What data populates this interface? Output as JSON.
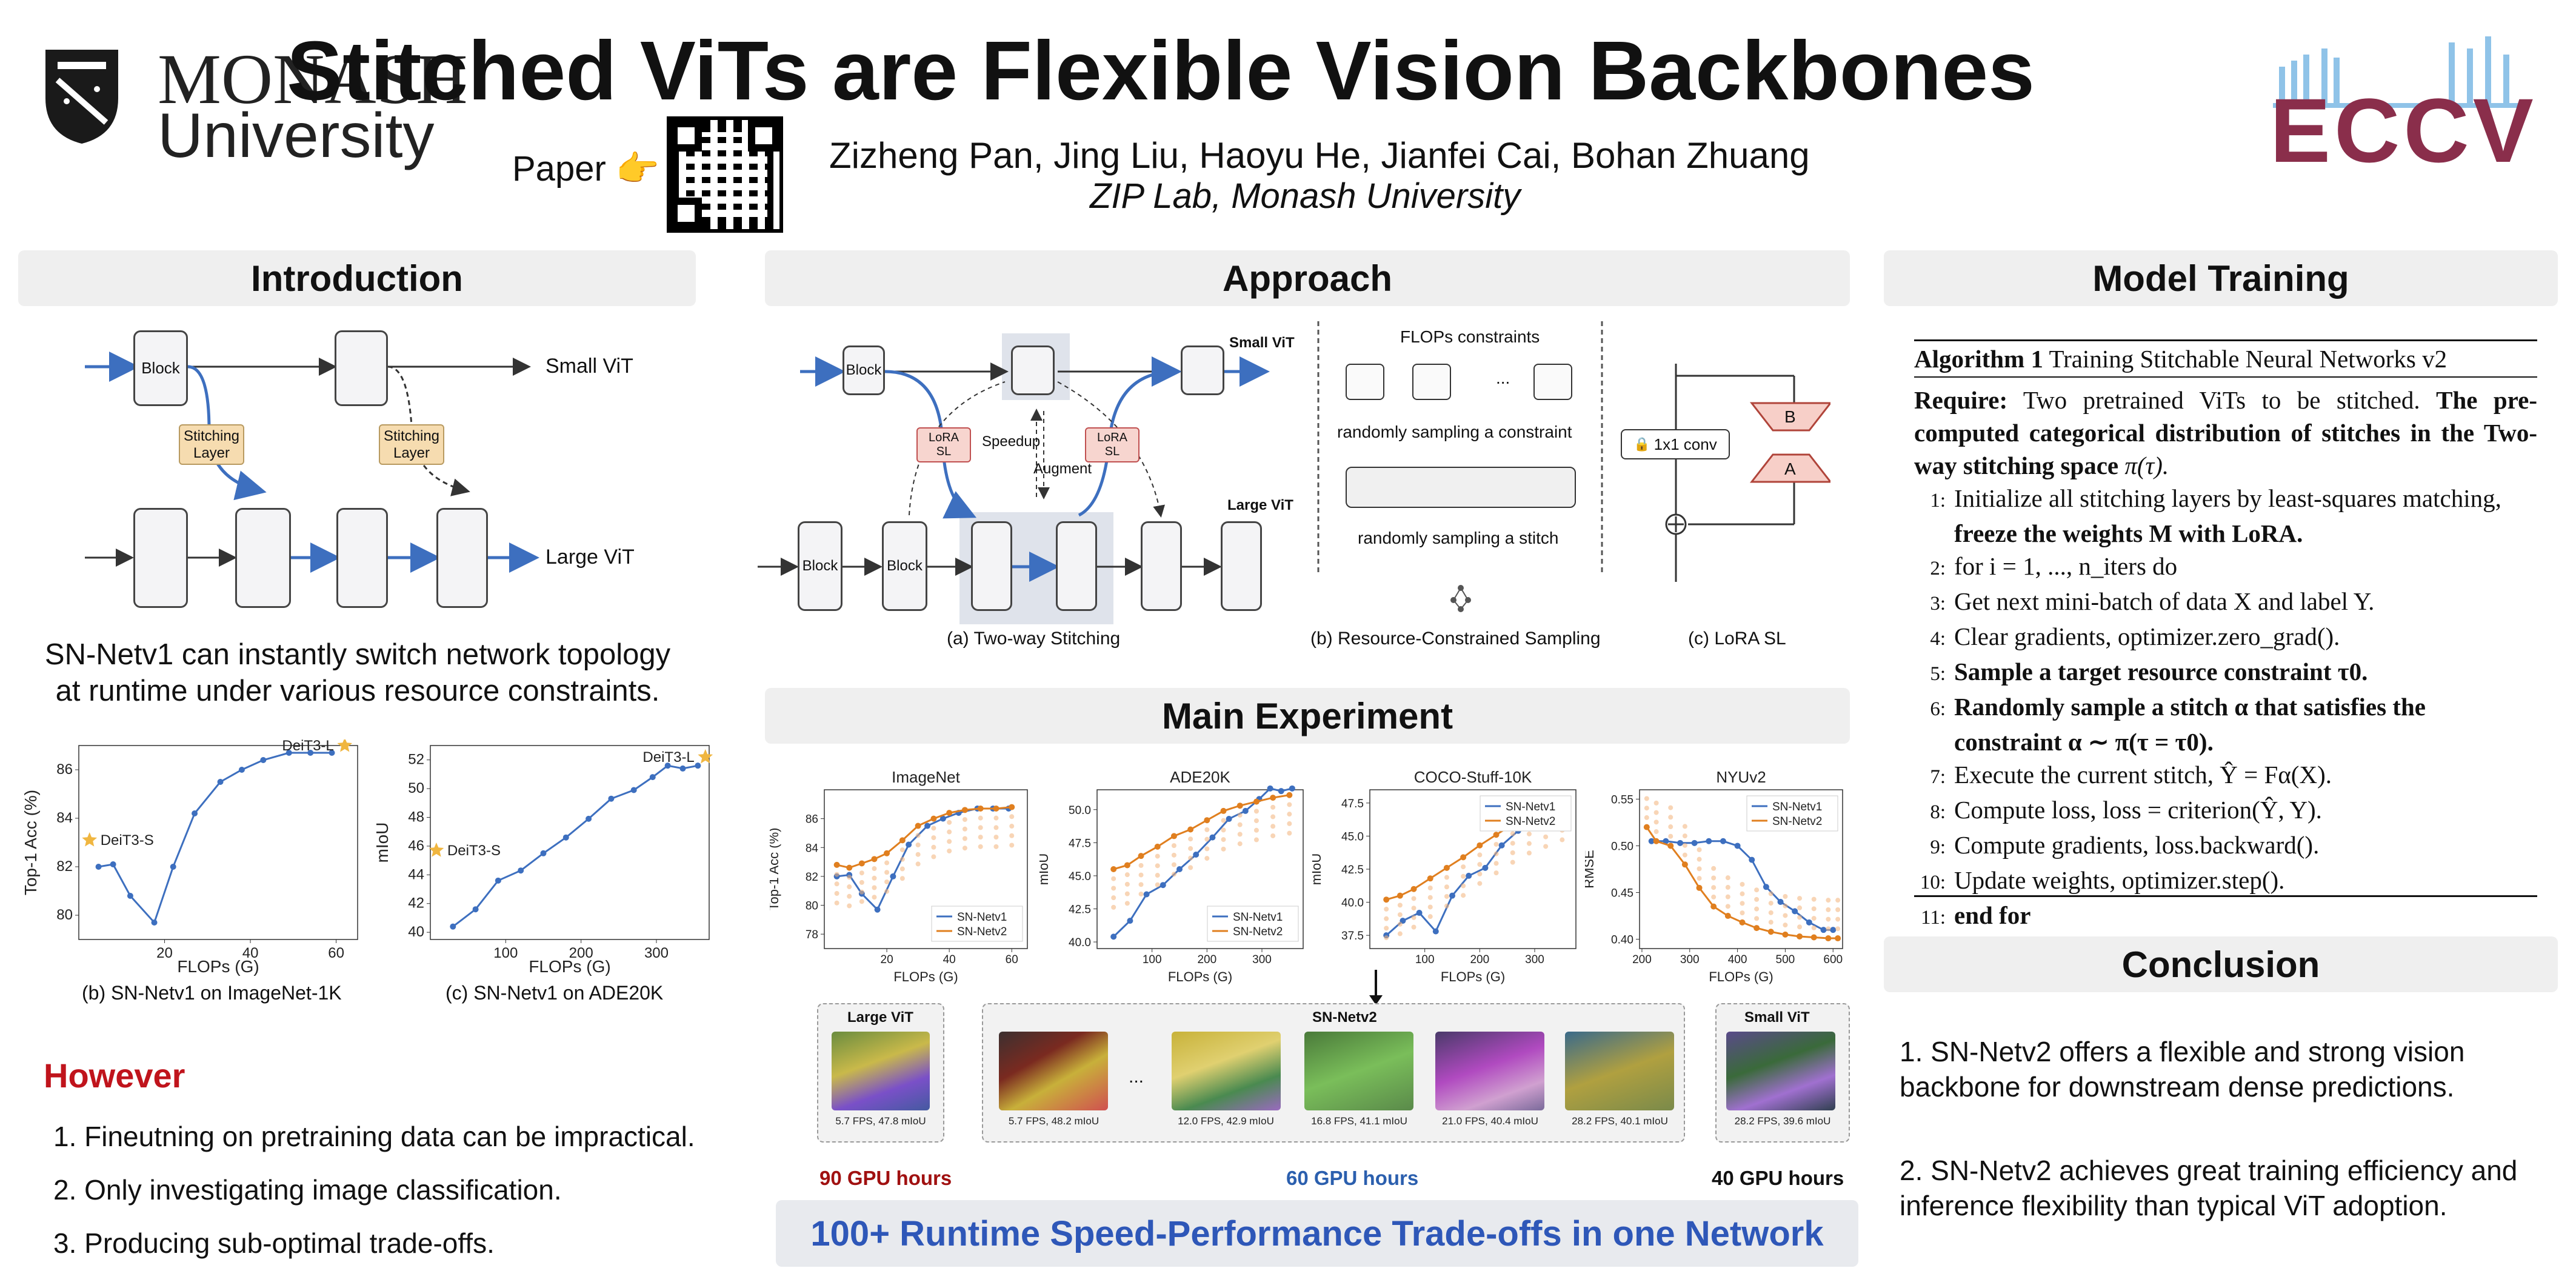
{
  "header": {
    "university_name": "MONASH",
    "university_sub": "University",
    "title": "Stitched ViTs are Flexible Vision Backbones",
    "paper_label": "Paper 👉",
    "authors": "Zizheng Pan, Jing Liu, Haoyu He, Jianfei Cai, Bohan Zhuang",
    "affiliation": "ZIP Lab, Monash University",
    "conference_logo": "ECCV"
  },
  "introduction": {
    "heading": "Introduction",
    "diagram": {
      "block": "Block",
      "stitching_layer": "Stitching Layer",
      "small_vit": "Small ViT",
      "large_vit": "Large ViT"
    },
    "summary": "SN-Netv1 can instantly switch network topology at runtime under various resource constraints.",
    "chart_b_caption": "(b) SN-Netv1 on ImageNet-1K",
    "chart_c_caption": "(c) SN-Netv1 on ADE20K",
    "however_heading": "However",
    "points": [
      "1. Fineutning on pretraining data can be impractical.",
      "2. Only investigating image classification.",
      "3. Producing sub-optimal trade-offs."
    ]
  },
  "approach": {
    "heading": "Approach",
    "block": "Block",
    "small_vit": "Small ViT",
    "large_vit": "Large ViT",
    "lora_sl": "LoRA SL",
    "speedup": "Speedup",
    "augment": "Augment",
    "flops_constraints": "FLOPs constraints",
    "ellipsis": "...",
    "sampling_constraint": "randomly sampling a constraint",
    "sampling_stitch": "randomly sampling a stitch",
    "conv_label": "1x1 conv",
    "b_label": "B",
    "a_label": "A",
    "caption_a": "(a) Two-way Stitching",
    "caption_b": "(b) Resource-Constrained Sampling",
    "caption_c": "(c) LoRA SL"
  },
  "main_experiment": {
    "heading": "Main Experiment",
    "large_vit_label": "Large ViT",
    "sn_netv2_label": "SN-Netv2",
    "small_vit_label": "Small ViT",
    "ellipsis": "...",
    "img_captions": [
      "5.7 FPS, 47.8 mIoU",
      "5.7 FPS, 48.2 mIoU",
      "12.0 FPS, 42.9 mIoU",
      "16.8 FPS, 41.1 mIoU",
      "21.0 FPS, 40.4 mIoU",
      "28.2 FPS, 40.1 mIoU",
      "28.2 FPS, 39.6 mIoU"
    ],
    "gpu_hours": [
      "90 GPU hours",
      "60 GPU hours",
      "40 GPU hours"
    ],
    "banner": "100+ Runtime Speed-Performance Trade-offs in one Network"
  },
  "model_training": {
    "heading": "Model Training",
    "algorithm_title_bold": "Algorithm 1",
    "algorithm_title": "Training Stitchable Neural Networks v2",
    "require_label": "Require:",
    "require_text": "Two pretrained ViTs to be stitched.",
    "require_bold": "The pre-computed categorical distribution of stitches in the Two-way stitching space",
    "require_math": "π(τ).",
    "lines": [
      {
        "n": "1:",
        "text": "Initialize all stitching layers by least-squares matching,"
      },
      {
        "n": "",
        "text": "freeze the weights M with LoRA."
      },
      {
        "n": "2:",
        "text": "for i = 1, ..., n_iters do"
      },
      {
        "n": "3:",
        "text": "Get next mini-batch of data X and label Y."
      },
      {
        "n": "4:",
        "text": "Clear gradients, optimizer.zero_grad()."
      },
      {
        "n": "5:",
        "text": "Sample a target resource constraint τ0."
      },
      {
        "n": "6:",
        "text": "Randomly sample a stitch α that satisfies the"
      },
      {
        "n": "",
        "text": "constraint α ∼ π(τ = τ0)."
      },
      {
        "n": "7:",
        "text": "Execute the current stitch, Ŷ = Fα(X)."
      },
      {
        "n": "8:",
        "text": "Compute loss, loss = criterion(Ŷ, Y)."
      },
      {
        "n": "9:",
        "text": "Compute gradients, loss.backward()."
      },
      {
        "n": "10:",
        "text": "Update weights, optimizer.step()."
      },
      {
        "n": "11:",
        "text": "end for"
      }
    ]
  },
  "conclusion": {
    "heading": "Conclusion",
    "points": [
      "1. SN-Netv2 offers a flexible and strong vision backbone for downstream dense predictions.",
      "2. SN-Netv2 achieves great training efficiency and inference flexibility than typical ViT adoption."
    ]
  },
  "chart_data": [
    {
      "type": "line",
      "title": "",
      "xlabel": "FLOPs (G)",
      "ylabel": "Top-1 Acc (%)",
      "xlim": [
        0,
        65
      ],
      "ylim": [
        79,
        87
      ],
      "xticks": [
        20,
        40,
        60
      ],
      "yticks": [
        80,
        82,
        84,
        86
      ],
      "series": [
        {
          "name": "",
          "x": [
            4.6,
            8,
            12,
            17.6,
            22,
            27,
            33,
            38,
            43,
            49,
            54,
            59
          ],
          "y": [
            82.0,
            82.1,
            80.8,
            79.7,
            82.0,
            84.2,
            85.5,
            86.0,
            86.4,
            86.7,
            86.7,
            86.7
          ]
        }
      ],
      "annotations": [
        {
          "text": "DeiT3-S",
          "x": 2.5,
          "y": 83.1
        },
        {
          "text": "DeiT3-L",
          "x": 62,
          "y": 87.0
        }
      ]
    },
    {
      "type": "line",
      "title": "",
      "xlabel": "FLOPs (G)",
      "ylabel": "mIoU",
      "xlim": [
        0,
        370
      ],
      "ylim": [
        39.5,
        53
      ],
      "xticks": [
        100,
        200,
        300
      ],
      "yticks": [
        40,
        42,
        44,
        46,
        48,
        50,
        52
      ],
      "series": [
        {
          "name": "",
          "x": [
            30,
            60,
            90,
            120,
            150,
            180,
            210,
            240,
            270,
            295,
            315,
            335,
            355
          ],
          "y": [
            40.4,
            41.6,
            43.6,
            44.3,
            45.5,
            46.6,
            47.9,
            49.3,
            49.9,
            50.8,
            51.6,
            51.4,
            51.6
          ]
        }
      ],
      "annotations": [
        {
          "text": "DeiT3-S",
          "x": 8,
          "y": 45.7
        },
        {
          "text": "DeiT3-L",
          "x": 365,
          "y": 52.2
        }
      ]
    },
    {
      "type": "line",
      "title": "ImageNet",
      "xlabel": "FLOPs (G)",
      "ylabel": "Top-1 Acc (%)",
      "xlim": [
        0,
        65
      ],
      "ylim": [
        77,
        88
      ],
      "xticks": [
        20,
        40,
        60
      ],
      "yticks": [
        78,
        80,
        82,
        84,
        86
      ],
      "series": [
        {
          "name": "SN-Netv1",
          "x": [
            4,
            8,
            12,
            17,
            22,
            27,
            33,
            38,
            43,
            49,
            54,
            59
          ],
          "y": [
            82.0,
            82.1,
            80.8,
            79.7,
            82.0,
            84.2,
            85.5,
            86.0,
            86.4,
            86.7,
            86.7,
            86.7
          ]
        },
        {
          "name": "SN-Netv2",
          "x": [
            4,
            8,
            12,
            16,
            20,
            25,
            30,
            35,
            40,
            45,
            50,
            55,
            60
          ],
          "y": [
            82.8,
            82.6,
            82.9,
            83.2,
            83.6,
            84.5,
            85.5,
            86.0,
            86.4,
            86.6,
            86.7,
            86.7,
            86.8
          ]
        }
      ]
    },
    {
      "type": "line",
      "title": "ADE20K",
      "xlabel": "FLOPs (G)",
      "ylabel": "mIoU",
      "xlim": [
        0,
        375
      ],
      "ylim": [
        39.5,
        51.5
      ],
      "xticks": [
        100,
        200,
        300
      ],
      "yticks": [
        40.0,
        42.5,
        45.0,
        47.5,
        50.0
      ],
      "series": [
        {
          "name": "SN-Netv1",
          "x": [
            30,
            60,
            90,
            120,
            150,
            180,
            210,
            240,
            270,
            295,
            315,
            335,
            355
          ],
          "y": [
            40.4,
            41.6,
            43.6,
            44.3,
            45.5,
            46.6,
            47.9,
            49.3,
            49.9,
            50.8,
            51.6,
            51.4,
            51.6
          ]
        },
        {
          "name": "SN-Netv2",
          "x": [
            30,
            55,
            80,
            110,
            140,
            170,
            200,
            230,
            260,
            290,
            320,
            350
          ],
          "y": [
            45.5,
            45.8,
            46.5,
            47.2,
            48.0,
            48.5,
            49.2,
            49.9,
            50.3,
            50.6,
            50.9,
            51.1
          ]
        }
      ]
    },
    {
      "type": "line",
      "title": "COCO-Stuff-10K",
      "xlabel": "FLOPs (G)",
      "ylabel": "mIoU",
      "xlim": [
        0,
        375
      ],
      "ylim": [
        36.5,
        48.5
      ],
      "xticks": [
        100,
        200,
        300
      ],
      "yticks": [
        37.5,
        40.0,
        42.5,
        45.0,
        47.5
      ],
      "series": [
        {
          "name": "SN-Netv1",
          "x": [
            30,
            60,
            90,
            120,
            150,
            180,
            210,
            240,
            270,
            295,
            315,
            335,
            355
          ],
          "y": [
            37.5,
            38.6,
            39.2,
            37.8,
            40.5,
            42.0,
            42.6,
            44.3,
            45.4,
            46.5,
            47.0,
            47.3,
            47.6
          ]
        },
        {
          "name": "SN-Netv2",
          "x": [
            30,
            55,
            80,
            110,
            140,
            170,
            200,
            230,
            260,
            290,
            320,
            350
          ],
          "y": [
            40.2,
            40.5,
            41.0,
            41.8,
            42.6,
            43.4,
            44.3,
            45.1,
            45.9,
            46.6,
            47.1,
            47.6
          ]
        }
      ]
    },
    {
      "type": "line",
      "title": "NYUv2",
      "xlabel": "FLOPs (G)",
      "ylabel": "RMSE",
      "xlim": [
        195,
        620
      ],
      "ylim": [
        0.39,
        0.56
      ],
      "xticks": [
        200,
        300,
        400,
        500,
        600
      ],
      "yticks": [
        0.4,
        0.45,
        0.5,
        0.55
      ],
      "series": [
        {
          "name": "SN-Netv1",
          "x": [
            220,
            250,
            280,
            310,
            340,
            370,
            400,
            430,
            460,
            490,
            520,
            550,
            580,
            600
          ],
          "y": [
            0.505,
            0.505,
            0.503,
            0.503,
            0.505,
            0.505,
            0.5,
            0.485,
            0.456,
            0.44,
            0.43,
            0.418,
            0.41,
            0.41
          ]
        },
        {
          "name": "SN-Netv2",
          "x": [
            210,
            230,
            260,
            290,
            320,
            350,
            380,
            410,
            440,
            470,
            500,
            530,
            560,
            590,
            610
          ],
          "y": [
            0.52,
            0.505,
            0.5,
            0.48,
            0.455,
            0.435,
            0.425,
            0.418,
            0.412,
            0.408,
            0.405,
            0.403,
            0.402,
            0.401,
            0.401
          ]
        }
      ]
    }
  ],
  "colors": {
    "blue": "#3d6fbf",
    "orange": "#e07f1f",
    "however_red": "#c0141c",
    "gpu_red": "#a01010",
    "gpu_blue": "#2b5fae",
    "banner_blue": "#2e57b8"
  }
}
